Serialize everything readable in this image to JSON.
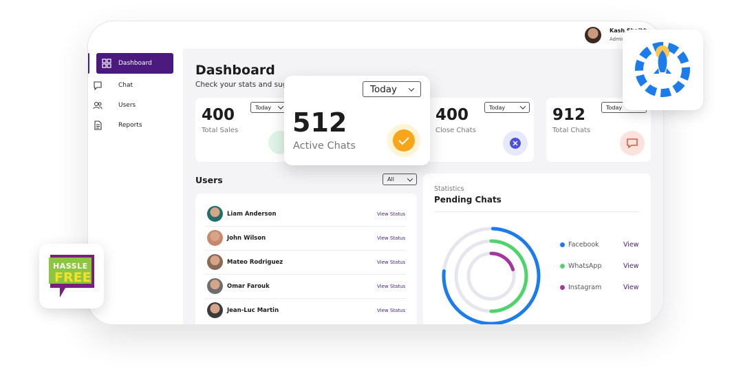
{
  "header": {
    "user_name": "Kash Shaikh",
    "user_role": "Admin"
  },
  "sidebar": {
    "items": [
      "Dashboard",
      "Chat",
      "Users",
      "Reports"
    ]
  },
  "page": {
    "title": "Dashboard",
    "subtitle": "Check your stats and suggestions"
  },
  "stat_cards": [
    {
      "value": 400,
      "label": "Total Sales",
      "period": "Today"
    },
    {
      "value": 400,
      "label": "Close Chats",
      "period": "Today"
    },
    {
      "value": 912,
      "label": "Total Chats",
      "period": "Today"
    }
  ],
  "popup_card": {
    "value": 512,
    "label": "Active Chats",
    "period": "Today"
  },
  "users": {
    "title": "Users",
    "filter": "All",
    "rows": [
      {
        "name": "Liam Anderson",
        "action": "View Status"
      },
      {
        "name": "John Wilson",
        "action": "View Status"
      },
      {
        "name": "Mateo Rodriguez",
        "action": "View Status"
      },
      {
        "name": "Omar Farouk",
        "action": "View Status"
      },
      {
        "name": "Jean-Luc Martin",
        "action": "View Status"
      }
    ]
  },
  "statistics": {
    "subtitle": "Statistics",
    "title": "Pending Chats",
    "legend": [
      {
        "name": "Facebook",
        "action": "View"
      },
      {
        "name": "WhatsApp",
        "action": "View"
      },
      {
        "name": "Instagram",
        "action": "View"
      }
    ]
  },
  "badge": {
    "lines": [
      "HASSLE",
      "FREE"
    ]
  }
}
